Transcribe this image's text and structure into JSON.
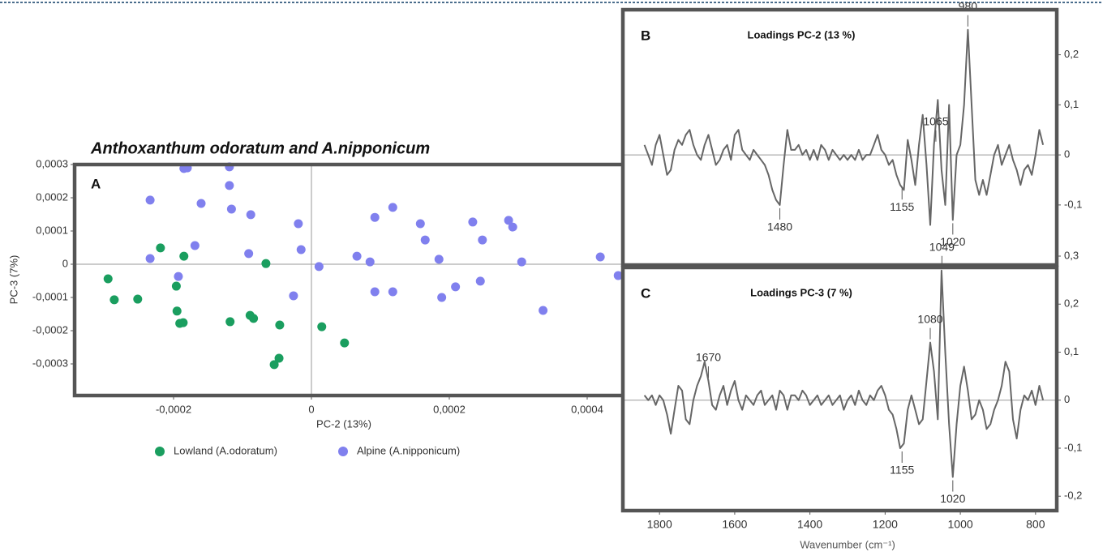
{
  "chart_data": [
    {
      "type": "scatter",
      "title": "Anthoxanthum odoratum and A.nipponicum",
      "label": "A",
      "xlabel": "PC-2 (13%)",
      "ylabel": "PC-3 (7%)",
      "xlim": [
        -0.00034,
        0.00046
      ],
      "ylim": [
        -0.0004,
        0.0003
      ],
      "xticks": [
        {
          "value": -0.0002,
          "label": "-0,0002"
        },
        0,
        {
          "value": 0.0002,
          "label": "0,0002"
        },
        {
          "value": 0.0004,
          "label": "0,0004"
        }
      ],
      "yticks": [
        {
          "value": 0.0003,
          "label": "0,0003"
        },
        {
          "value": 0.0002,
          "label": "0,0002"
        },
        {
          "value": 0.0001,
          "label": "0,0001"
        },
        0,
        {
          "value": -0.0001,
          "label": "-0,0001"
        },
        {
          "value": -0.0002,
          "label": "-0,0002"
        },
        {
          "value": -0.0003,
          "label": "-0,0003"
        }
      ],
      "series": [
        {
          "name": "Lowland (A.odoratum)",
          "color": "#1a9e5f",
          "x": [
            -0.000295,
            -0.000286,
            -0.000252,
            -0.000219,
            -0.000185,
            -0.000196,
            -0.000195,
            -0.000191,
            -0.000186,
            -0.000118,
            -8.9e-05,
            -8.4e-05,
            -6.6e-05,
            -4.6e-05,
            -5.4e-05,
            -4.7e-05,
            1.5e-05,
            4.8e-05
          ],
          "values": [
            -4.4e-05,
            -0.000107,
            -0.000105,
            4.9e-05,
            2.4e-05,
            -6.6e-05,
            -0.000141,
            -0.000178,
            -0.000176,
            -0.000173,
            -0.000154,
            -0.000163,
            2e-06,
            -0.000183,
            -0.000302,
            -0.000283,
            -0.000188,
            -0.000237
          ]
        },
        {
          "name": "Alpine (A.nipponicum)",
          "color": "#8080ee",
          "x": [
            -0.000234,
            -0.000234,
            -0.000185,
            -0.00018,
            -0.000169,
            -0.00016,
            -0.000193,
            -0.000119,
            -0.000119,
            -0.000116,
            -8.8e-05,
            -9.1e-05,
            -2.6e-05,
            -1.9e-05,
            -1.5e-05,
            1.1e-05,
            6.6e-05,
            8.5e-05,
            9.2e-05,
            9.2e-05,
            0.000118,
            0.000118,
            0.000158,
            0.000165,
            0.000185,
            0.000189,
            0.000209,
            0.000234,
            0.000248,
            0.000245,
            0.000286,
            0.000292,
            0.000305,
            0.000336,
            0.000419,
            0.000445
          ],
          "values": [
            0.000193,
            1.7e-05,
            0.000288,
            0.00029,
            5.6e-05,
            0.000183,
            -3.7e-05,
            0.000293,
            0.000237,
            0.000166,
            0.000149,
            3.2e-05,
            -9.5e-05,
            0.000122,
            4.4e-05,
            -7e-06,
            2.4e-05,
            7e-06,
            0.000141,
            -8.3e-05,
            0.000171,
            -8.3e-05,
            0.000122,
            7.3e-05,
            1.5e-05,
            -0.0001,
            -6.8e-05,
            0.000127,
            7.3e-05,
            -5.1e-05,
            0.000132,
            0.000112,
            7e-06,
            -0.000139,
            2.2e-05,
            -3.4e-05
          ]
        }
      ]
    },
    {
      "type": "line",
      "title": "Loadings PC-2 (13 %)",
      "label": "B",
      "xlim": [
        1850,
        750
      ],
      "ylim": [
        -0.22,
        0.29
      ],
      "yticks": [
        {
          "value": 0.2,
          "label": "0,2"
        },
        {
          "value": 0.1,
          "label": "0,1"
        },
        0,
        {
          "value": -0.1,
          "label": "-0,1"
        }
      ],
      "annotations": [
        {
          "label": "980",
          "x": 980,
          "side": "above"
        },
        {
          "label": "1065",
          "x": 1065,
          "side": "above"
        },
        {
          "label": "1480",
          "x": 1480,
          "side": "below"
        },
        {
          "label": "1155",
          "x": 1155,
          "side": "below"
        },
        {
          "label": "1020",
          "x": 1020,
          "side": "below"
        }
      ],
      "series": [
        {
          "color": "#666666",
          "x": [
            1840,
            1830,
            1820,
            1810,
            1800,
            1790,
            1780,
            1770,
            1760,
            1750,
            1740,
            1730,
            1720,
            1710,
            1700,
            1690,
            1680,
            1670,
            1660,
            1650,
            1640,
            1630,
            1620,
            1610,
            1600,
            1590,
            1580,
            1570,
            1560,
            1550,
            1540,
            1530,
            1520,
            1510,
            1500,
            1490,
            1480,
            1470,
            1460,
            1450,
            1440,
            1430,
            1420,
            1410,
            1400,
            1390,
            1380,
            1370,
            1360,
            1350,
            1340,
            1330,
            1320,
            1310,
            1300,
            1290,
            1280,
            1270,
            1260,
            1250,
            1240,
            1230,
            1220,
            1210,
            1200,
            1190,
            1180,
            1170,
            1160,
            1150,
            1140,
            1130,
            1120,
            1110,
            1100,
            1090,
            1080,
            1070,
            1060,
            1050,
            1040,
            1030,
            1020,
            1010,
            1000,
            990,
            980,
            970,
            960,
            950,
            940,
            930,
            920,
            910,
            900,
            890,
            880,
            870,
            860,
            850,
            840,
            830,
            820,
            810,
            800,
            790,
            780
          ],
          "values": [
            0.02,
            0,
            -0.02,
            0.02,
            0.04,
            0,
            -0.04,
            -0.03,
            0.01,
            0.03,
            0.02,
            0.04,
            0.05,
            0.02,
            0,
            -0.01,
            0.02,
            0.04,
            0.01,
            -0.02,
            -0.01,
            0.01,
            0.02,
            -0.01,
            0.04,
            0.05,
            0.01,
            0,
            -0.01,
            0.01,
            0,
            -0.01,
            -0.02,
            -0.04,
            -0.07,
            -0.09,
            -0.1,
            -0.02,
            0.05,
            0.01,
            0.01,
            0.02,
            0,
            0.01,
            -0.01,
            0.01,
            -0.01,
            0.02,
            0.01,
            -0.01,
            0.01,
            0,
            -0.01,
            0,
            -0.01,
            0,
            -0.01,
            0.01,
            -0.01,
            0,
            0,
            0.02,
            0.04,
            0.01,
            0,
            -0.02,
            -0.01,
            -0.04,
            -0.06,
            -0.07,
            0.03,
            -0.01,
            -0.06,
            0.02,
            0.08,
            -0.02,
            -0.14,
            0.02,
            0.11,
            -0.03,
            -0.1,
            0.1,
            -0.13,
            0,
            0.02,
            0.1,
            0.25,
            0.1,
            -0.05,
            -0.08,
            -0.05,
            -0.08,
            -0.04,
            0,
            0.02,
            -0.02,
            0,
            0.02,
            -0.01,
            -0.03,
            -0.06,
            -0.03,
            -0.02,
            -0.04,
            0,
            0.05,
            0.02
          ]
        }
      ]
    },
    {
      "type": "line",
      "title": "Loadings PC-3 (7 %)",
      "label": "C",
      "xlabel": "Wavenumber (cm⁻¹)",
      "xlim": [
        1850,
        750
      ],
      "ylim": [
        -0.23,
        0.3
      ],
      "xticks": [
        1800,
        1600,
        1400,
        1200,
        1000,
        800
      ],
      "yticks": [
        {
          "value": 0.3,
          "label": "0,3"
        },
        {
          "value": 0.2,
          "label": "0,2"
        },
        {
          "value": 0.1,
          "label": "0,1"
        },
        0,
        {
          "value": -0.1,
          "label": "-0,1"
        },
        {
          "value": -0.2,
          "label": "-0,2"
        }
      ],
      "annotations": [
        {
          "label": "1670",
          "x": 1670,
          "side": "above"
        },
        {
          "label": "1080",
          "x": 1080,
          "side": "above"
        },
        {
          "label": "1049",
          "x": 1049,
          "side": "above"
        },
        {
          "label": "1155",
          "x": 1155,
          "side": "below"
        },
        {
          "label": "1020",
          "x": 1020,
          "side": "below"
        }
      ],
      "series": [
        {
          "color": "#666666",
          "x": [
            1840,
            1830,
            1820,
            1810,
            1800,
            1790,
            1780,
            1770,
            1760,
            1750,
            1740,
            1730,
            1720,
            1710,
            1700,
            1690,
            1680,
            1670,
            1660,
            1650,
            1640,
            1630,
            1620,
            1610,
            1600,
            1590,
            1580,
            1570,
            1560,
            1550,
            1540,
            1530,
            1520,
            1510,
            1500,
            1490,
            1480,
            1470,
            1460,
            1450,
            1440,
            1430,
            1420,
            1410,
            1400,
            1390,
            1380,
            1370,
            1360,
            1350,
            1340,
            1330,
            1320,
            1310,
            1300,
            1290,
            1280,
            1270,
            1260,
            1250,
            1240,
            1230,
            1220,
            1210,
            1200,
            1190,
            1180,
            1170,
            1160,
            1150,
            1140,
            1130,
            1120,
            1110,
            1100,
            1090,
            1080,
            1070,
            1060,
            1050,
            1040,
            1030,
            1020,
            1010,
            1000,
            990,
            980,
            970,
            960,
            950,
            940,
            930,
            920,
            910,
            900,
            890,
            880,
            870,
            860,
            850,
            840,
            830,
            820,
            810,
            800,
            790,
            780
          ],
          "values": [
            0.01,
            0,
            0.01,
            -0.01,
            0.01,
            0,
            -0.03,
            -0.07,
            -0.02,
            0.03,
            0.02,
            -0.04,
            -0.05,
            0,
            0.03,
            0.05,
            0.08,
            0.04,
            -0.01,
            -0.02,
            0.01,
            0.03,
            -0.01,
            0.02,
            0.04,
            0,
            -0.02,
            0.01,
            0,
            -0.01,
            0.01,
            0.02,
            -0.01,
            0,
            0.01,
            -0.02,
            0.02,
            0.01,
            -0.02,
            0.01,
            0.01,
            0,
            0.02,
            0.01,
            -0.01,
            0,
            0.01,
            -0.01,
            0,
            0.01,
            -0.01,
            0,
            0.01,
            -0.02,
            0,
            0.01,
            -0.01,
            0.02,
            0,
            -0.01,
            0.01,
            0,
            0.02,
            0.03,
            0.01,
            -0.02,
            -0.03,
            -0.06,
            -0.1,
            -0.09,
            -0.02,
            0.01,
            -0.02,
            -0.05,
            -0.04,
            0.04,
            0.12,
            0.06,
            -0.04,
            0.27,
            0.1,
            -0.05,
            -0.16,
            -0.05,
            0.03,
            0.07,
            0.02,
            -0.04,
            -0.03,
            0,
            -0.02,
            -0.06,
            -0.05,
            -0.02,
            0,
            0.03,
            0.08,
            0.06,
            -0.04,
            -0.08,
            -0.02,
            0.01,
            0,
            0.02,
            -0.01,
            0.03,
            0
          ]
        }
      ]
    }
  ]
}
